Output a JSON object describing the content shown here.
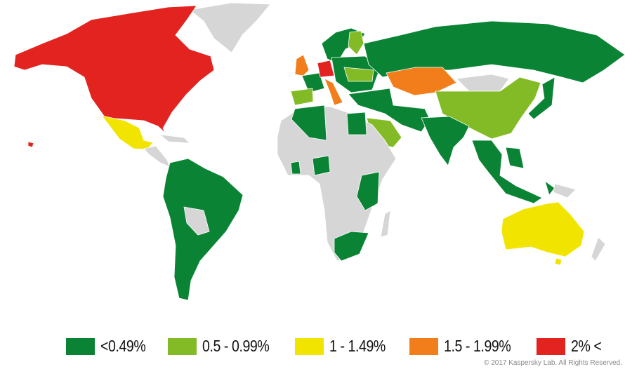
{
  "legend": [
    {
      "label": "<0.49%",
      "color": "#0a8434"
    },
    {
      "label": "0.5 - 0.99%",
      "color": "#83bb26"
    },
    {
      "label": "1 - 1.49%",
      "color": "#f1e500"
    },
    {
      "label": "1.5 - 1.99%",
      "color": "#f17e1a"
    },
    {
      "label": "2% <",
      "color": "#e2231f"
    }
  ],
  "no_data_color": "#d6d6d6",
  "copyright": "© 2017 Kaspersky Lab. All Rights Reserved."
}
